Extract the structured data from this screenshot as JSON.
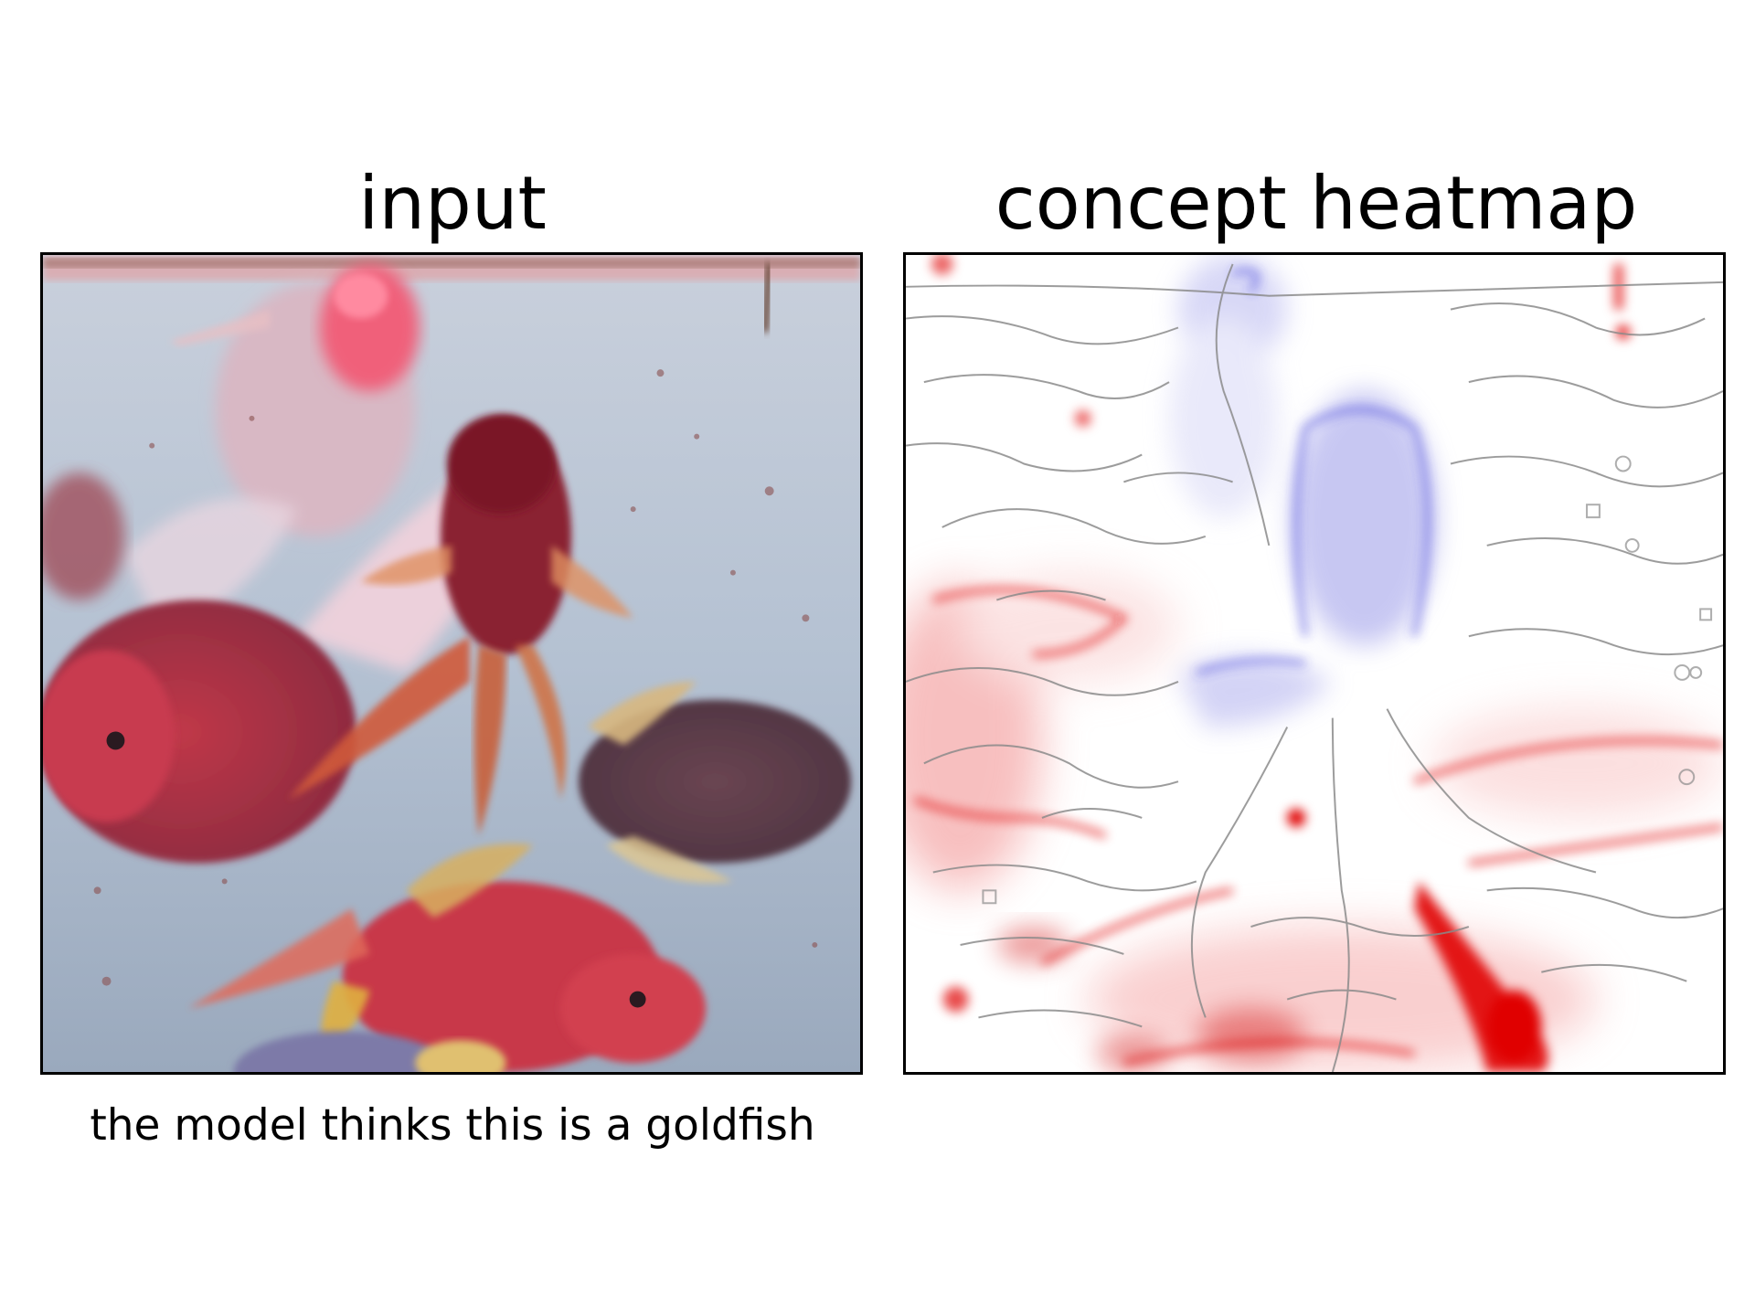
{
  "panels": {
    "input": {
      "title": "input"
    },
    "heatmap": {
      "title": "concept heatmap"
    }
  },
  "caption": "the model thinks this is a goldfish",
  "colors": {
    "background": "#ffffff",
    "frame": "#000000",
    "water": "#a9b8c8",
    "heatmap_positive": "#e00000",
    "heatmap_negative": "#3030e0",
    "edge_lines": "#8a8a8a"
  }
}
